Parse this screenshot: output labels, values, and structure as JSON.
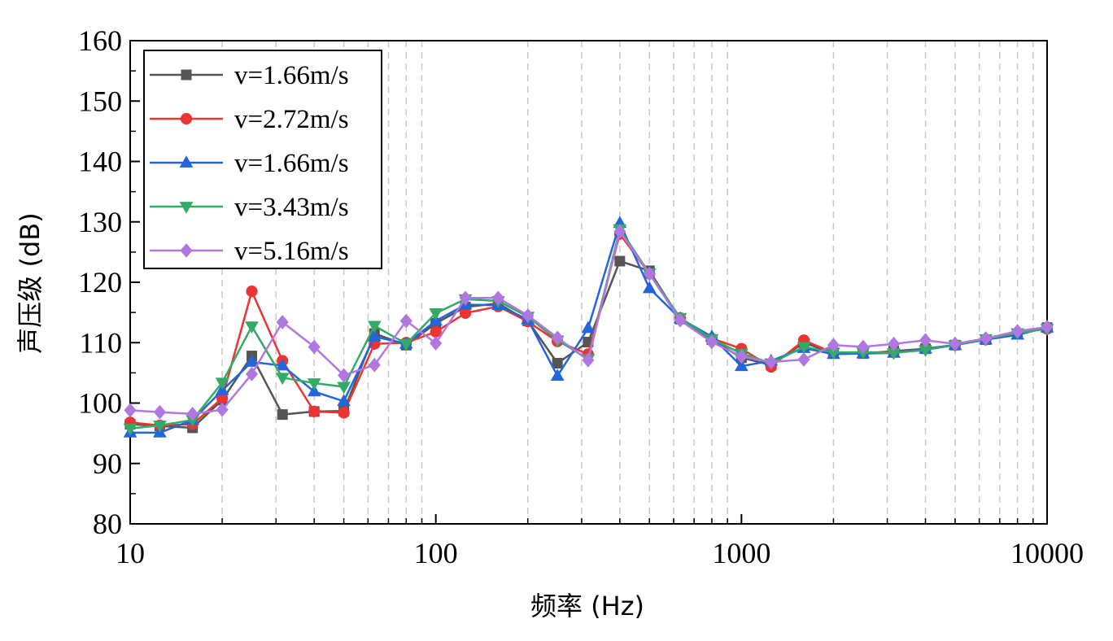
{
  "chart_data": {
    "type": "line",
    "xscale": "log",
    "xlim": [
      10,
      10000
    ],
    "ylim": [
      80,
      160
    ],
    "xlabel": "频率 (Hz)",
    "ylabel": "声压级 (dB)",
    "x_ticks": [
      "10",
      "100",
      "1000",
      "10000"
    ],
    "y_ticks": [
      "80",
      "90",
      "100",
      "110",
      "120",
      "130",
      "140",
      "150",
      "160"
    ],
    "grid": "vertical dashed minor lines",
    "legend_position": "top-left",
    "x": [
      10,
      12.5,
      16,
      20,
      25,
      31.5,
      40,
      50,
      63,
      80,
      100,
      125,
      160,
      200,
      250,
      315,
      400,
      500,
      630,
      800,
      1000,
      1250,
      1600,
      2000,
      2500,
      3150,
      4000,
      5000,
      6300,
      8000,
      10000
    ],
    "series": [
      {
        "name": "v=1.66m/s",
        "color": "#555555",
        "marker": "square",
        "values": [
          96.5,
          96.2,
          95.9,
          100.5,
          107.8,
          98.1,
          98.6,
          98.7,
          111.5,
          109.6,
          113.2,
          115.9,
          116.5,
          113.6,
          106.6,
          110.1,
          123.5,
          121.9,
          113.9,
          110.5,
          107.5,
          106.3,
          110.0,
          108.3,
          108.2,
          108.6,
          109.0,
          109.6,
          110.5,
          111.5,
          112.5
        ]
      },
      {
        "name": "v=2.72m/s",
        "color": "#ee3333",
        "marker": "circle",
        "values": [
          96.8,
          96.3,
          96.5,
          100.8,
          118.5,
          107.0,
          98.6,
          98.4,
          109.8,
          110.0,
          111.8,
          114.9,
          116.0,
          113.5,
          110.2,
          108.1,
          128.0,
          121.4,
          114.1,
          110.7,
          109.0,
          106.0,
          110.4,
          108.3,
          108.4,
          108.4,
          109.0,
          109.6,
          110.5,
          111.6,
          112.3
        ]
      },
      {
        "name": "v=1.66m/s",
        "color": "#2266dd",
        "marker": "triangle-up",
        "values": [
          95.1,
          95.1,
          97.2,
          102.1,
          106.8,
          106.2,
          101.9,
          100.3,
          111.0,
          109.8,
          113.6,
          116.3,
          116.2,
          113.8,
          104.5,
          112.4,
          129.8,
          119.0,
          114.0,
          111.0,
          106.1,
          107.0,
          109.1,
          108.1,
          108.2,
          108.3,
          109.0,
          109.6,
          110.5,
          111.3,
          112.5
        ]
      },
      {
        "name": "v=3.43m/s",
        "color": "#33aa66",
        "marker": "triangle-down",
        "values": [
          95.8,
          96.3,
          97.2,
          103.4,
          112.7,
          104.2,
          103.3,
          102.7,
          112.8,
          109.8,
          114.9,
          117.2,
          116.9,
          114.3,
          110.4,
          107.3,
          128.8,
          121.5,
          114.1,
          110.6,
          108.2,
          106.6,
          109.3,
          108.4,
          108.4,
          108.3,
          108.8,
          109.6,
          110.6,
          111.6,
          112.3
        ]
      },
      {
        "name": "v=5.16m/s",
        "color": "#b077e0",
        "marker": "diamond",
        "values": [
          98.8,
          98.5,
          98.2,
          98.9,
          104.8,
          113.4,
          109.3,
          104.6,
          106.3,
          113.6,
          109.9,
          117.4,
          117.4,
          114.5,
          110.8,
          107.1,
          128.4,
          121.4,
          113.7,
          110.1,
          107.7,
          106.8,
          107.2,
          109.6,
          109.3,
          109.8,
          110.4,
          109.8,
          110.7,
          111.9,
          112.6
        ]
      }
    ]
  }
}
